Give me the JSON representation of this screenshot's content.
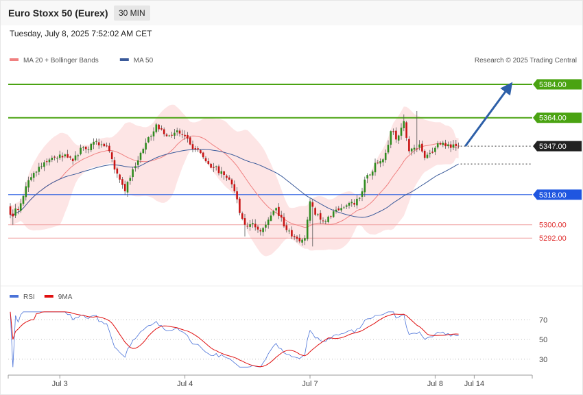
{
  "header": {
    "title": "Euro Stoxx 50 (Eurex)",
    "interval": "30 MIN",
    "timestamp": "Tuesday, July 8, 2025 7:52:02 AM CET"
  },
  "chart_data": {
    "type": "candlestick",
    "ylim": [
      5265,
      5393
    ],
    "credit": "Research © 2025 Trading Central",
    "legend": [
      {
        "label": "MA 20 + Bollinger Bands",
        "color": "#f08080"
      },
      {
        "label": "MA 50",
        "color": "#3a5a9a"
      }
    ],
    "x_ticks": [
      {
        "label": "Jul 3",
        "index": 19
      },
      {
        "label": "Jul 4",
        "index": 67
      },
      {
        "label": "Jul 7",
        "index": 115
      },
      {
        "label": "Jul 8",
        "index": 163
      },
      {
        "label": "Jul 14",
        "index": 178
      }
    ],
    "levels": [
      {
        "value": 5384.0,
        "label": "5384.00",
        "color": "#4aa312",
        "kind": "resistance"
      },
      {
        "value": 5364.0,
        "label": "5364.00",
        "color": "#4aa312",
        "kind": "resistance"
      },
      {
        "value": 5347.0,
        "label": "5347.00",
        "color": "#222222",
        "kind": "last"
      },
      {
        "value": 5318.0,
        "label": "5318.00",
        "color": "#1f56e0",
        "kind": "support"
      },
      {
        "value": 5300.0,
        "label": "5300.00",
        "color": "#e03030",
        "kind": "minor"
      },
      {
        "value": 5292.0,
        "label": "5292.00",
        "color": "#e03030",
        "kind": "minor"
      }
    ],
    "forecast_arrow": {
      "from": {
        "index": 173,
        "price": 5347
      },
      "to": {
        "index": 190,
        "price": 5383
      }
    },
    "anchors_close": [
      [
        0,
        5306
      ],
      [
        3,
        5309
      ],
      [
        6,
        5323
      ],
      [
        9,
        5331
      ],
      [
        12,
        5335
      ],
      [
        15,
        5339
      ],
      [
        18,
        5340
      ],
      [
        21,
        5342
      ],
      [
        24,
        5338
      ],
      [
        27,
        5346
      ],
      [
        30,
        5345
      ],
      [
        33,
        5350
      ],
      [
        36,
        5347
      ],
      [
        38,
        5344
      ],
      [
        40,
        5333
      ],
      [
        42,
        5327
      ],
      [
        44,
        5320
      ],
      [
        46,
        5328
      ],
      [
        48,
        5335
      ],
      [
        50,
        5343
      ],
      [
        52,
        5349
      ],
      [
        54,
        5353
      ],
      [
        56,
        5360
      ],
      [
        58,
        5357
      ],
      [
        60,
        5353
      ],
      [
        63,
        5355
      ],
      [
        66,
        5354
      ],
      [
        69,
        5348
      ],
      [
        72,
        5345
      ],
      [
        75,
        5338
      ],
      [
        78,
        5334
      ],
      [
        81,
        5332
      ],
      [
        84,
        5327
      ],
      [
        86,
        5320
      ],
      [
        88,
        5307
      ],
      [
        90,
        5300
      ],
      [
        93,
        5301
      ],
      [
        96,
        5296
      ],
      [
        99,
        5303
      ],
      [
        102,
        5310
      ],
      [
        105,
        5299
      ],
      [
        108,
        5293
      ],
      [
        111,
        5290
      ],
      [
        113,
        5292
      ],
      [
        115,
        5314
      ],
      [
        117,
        5306
      ],
      [
        119,
        5303
      ],
      [
        121,
        5302
      ],
      [
        124,
        5308
      ],
      [
        127,
        5310
      ],
      [
        130,
        5313
      ],
      [
        132,
        5312
      ],
      [
        134,
        5316
      ],
      [
        136,
        5327
      ],
      [
        138,
        5330
      ],
      [
        140,
        5337
      ],
      [
        142,
        5338
      ],
      [
        144,
        5343
      ],
      [
        146,
        5356
      ],
      [
        148,
        5351
      ],
      [
        150,
        5358
      ],
      [
        151,
        5362
      ],
      [
        152,
        5352
      ],
      [
        153,
        5344
      ],
      [
        155,
        5346
      ],
      [
        157,
        5348
      ],
      [
        159,
        5340
      ],
      [
        161,
        5343
      ],
      [
        163,
        5346
      ],
      [
        165,
        5348
      ],
      [
        167,
        5347
      ],
      [
        169,
        5346
      ],
      [
        171,
        5347
      ],
      [
        172,
        5347
      ]
    ],
    "rsi": {
      "ylim": [
        18,
        82
      ],
      "ticks": [
        70,
        50,
        30
      ],
      "legend": [
        {
          "label": "RSI",
          "color": "#4a72d8"
        },
        {
          "label": "9MA",
          "color": "#e01010"
        }
      ]
    }
  }
}
